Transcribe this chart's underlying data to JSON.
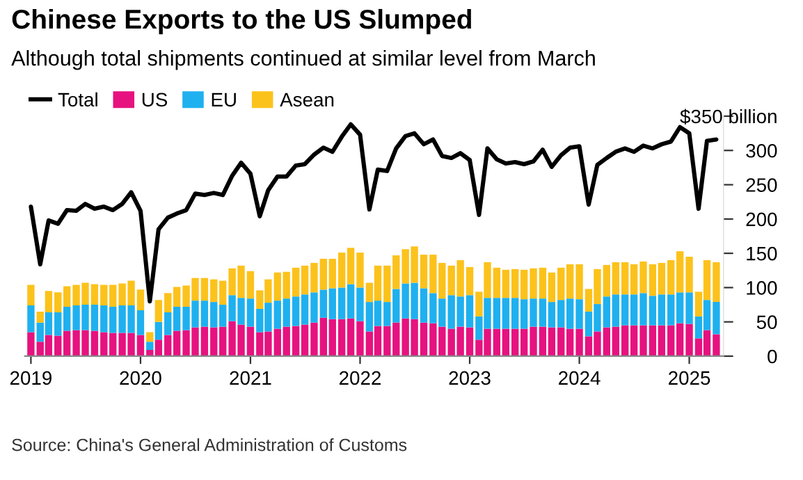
{
  "chart_data": {
    "type": "bar",
    "title": "Chinese Exports to the US Slumped",
    "subtitle": "Although total shipments continued at similar level from March",
    "x": [
      "2019-01",
      "2019-02",
      "2019-03",
      "2019-04",
      "2019-05",
      "2019-06",
      "2019-07",
      "2019-08",
      "2019-09",
      "2019-10",
      "2019-11",
      "2019-12",
      "2020-01",
      "2020-02",
      "2020-03",
      "2020-04",
      "2020-05",
      "2020-06",
      "2020-07",
      "2020-08",
      "2020-09",
      "2020-10",
      "2020-11",
      "2020-12",
      "2021-01",
      "2021-02",
      "2021-03",
      "2021-04",
      "2021-05",
      "2021-06",
      "2021-07",
      "2021-08",
      "2021-09",
      "2021-10",
      "2021-11",
      "2021-12",
      "2022-01",
      "2022-02",
      "2022-03",
      "2022-04",
      "2022-05",
      "2022-06",
      "2022-07",
      "2022-08",
      "2022-09",
      "2022-10",
      "2022-11",
      "2022-12",
      "2023-01",
      "2023-02",
      "2023-03",
      "2023-04",
      "2023-05",
      "2023-06",
      "2023-07",
      "2023-08",
      "2023-09",
      "2023-10",
      "2023-11",
      "2023-12",
      "2024-01",
      "2024-02",
      "2024-03",
      "2024-04",
      "2024-05",
      "2024-06",
      "2024-07",
      "2024-08",
      "2024-09",
      "2024-10",
      "2024-11",
      "2024-12",
      "2025-01",
      "2025-02",
      "2025-03",
      "2025-04"
    ],
    "stacked": true,
    "series": [
      {
        "name": "Total",
        "type": "line",
        "color": "#000000",
        "values": [
          218,
          134,
          198,
          193,
          213,
          212,
          222,
          215,
          218,
          213,
          222,
          239,
          212,
          80,
          185,
          202,
          208,
          213,
          237,
          235,
          238,
          235,
          263,
          282,
          266,
          204,
          242,
          262,
          262,
          278,
          280,
          294,
          304,
          298,
          320,
          338,
          323,
          214,
          272,
          270,
          303,
          321,
          325,
          309,
          316,
          292,
          289,
          296,
          286,
          206,
          303,
          287,
          281,
          283,
          280,
          284,
          301,
          276,
          293,
          304,
          306,
          221,
          279,
          289,
          298,
          303,
          298,
          307,
          303,
          309,
          313,
          334,
          325,
          215,
          314,
          316
        ]
      },
      {
        "name": "US",
        "color": "#e6127f",
        "values": [
          35,
          21,
          31,
          30,
          37,
          38,
          38,
          37,
          35,
          34,
          34,
          34,
          31,
          9,
          24,
          31,
          37,
          38,
          42,
          43,
          42,
          43,
          51,
          46,
          43,
          35,
          36,
          40,
          43,
          44,
          46,
          49,
          56,
          54,
          54,
          55,
          51,
          36,
          44,
          44,
          49,
          55,
          54,
          49,
          48,
          43,
          40,
          43,
          42,
          24,
          40,
          40,
          40,
          40,
          40,
          43,
          43,
          42,
          42,
          40,
          40,
          29,
          36,
          42,
          43,
          45,
          45,
          45,
          45,
          45,
          45,
          48,
          47,
          26,
          38,
          32
        ]
      },
      {
        "name": "EU",
        "color": "#1fb0ef",
        "values": [
          39,
          28,
          33,
          34,
          35,
          36,
          37,
          38,
          39,
          38,
          40,
          40,
          36,
          12,
          26,
          33,
          35,
          34,
          39,
          38,
          37,
          32,
          38,
          39,
          41,
          34,
          42,
          41,
          41,
          43,
          44,
          44,
          41,
          45,
          46,
          50,
          49,
          43,
          37,
          35,
          49,
          51,
          53,
          50,
          44,
          41,
          49,
          44,
          47,
          34,
          45,
          45,
          45,
          45,
          43,
          41,
          41,
          37,
          40,
          44,
          43,
          36,
          40,
          45,
          47,
          45,
          45,
          47,
          43,
          45,
          45,
          45,
          46,
          32,
          44,
          47
        ]
      },
      {
        "name": "Asean",
        "color": "#fcc21c",
        "values": [
          30,
          16,
          31,
          29,
          30,
          30,
          32,
          30,
          30,
          32,
          32,
          36,
          30,
          14,
          32,
          28,
          29,
          31,
          33,
          33,
          33,
          35,
          39,
          47,
          40,
          27,
          34,
          41,
          39,
          42,
          42,
          43,
          45,
          43,
          51,
          53,
          51,
          28,
          51,
          53,
          49,
          50,
          53,
          49,
          56,
          52,
          43,
          53,
          41,
          36,
          52,
          44,
          41,
          42,
          43,
          44,
          45,
          43,
          47,
          50,
          51,
          33,
          51,
          46,
          47,
          47,
          44,
          46,
          46,
          46,
          50,
          60,
          52,
          36,
          58,
          58
        ]
      }
    ],
    "xlim": [
      "2018-12-12",
      "2025-04-25"
    ],
    "xticks": [
      {
        "value": "2019-01-01",
        "label": "2019"
      },
      {
        "value": "2020-01-01",
        "label": "2020"
      },
      {
        "value": "2021-01-01",
        "label": "2021"
      },
      {
        "value": "2022-01-01",
        "label": "2022"
      },
      {
        "value": "2023-01-01",
        "label": "2023"
      },
      {
        "value": "2024-01-01",
        "label": "2024"
      },
      {
        "value": "2025-01-01",
        "label": "2025"
      }
    ],
    "ylim": [
      0,
      350
    ],
    "yticks": [
      0,
      50,
      100,
      150,
      200,
      250,
      300,
      {
        "value": 350,
        "label": "$350 billion"
      }
    ],
    "legend": "top left",
    "grid": false,
    "annotations": [
      "Source: China's General Administration of Customs"
    ]
  }
}
